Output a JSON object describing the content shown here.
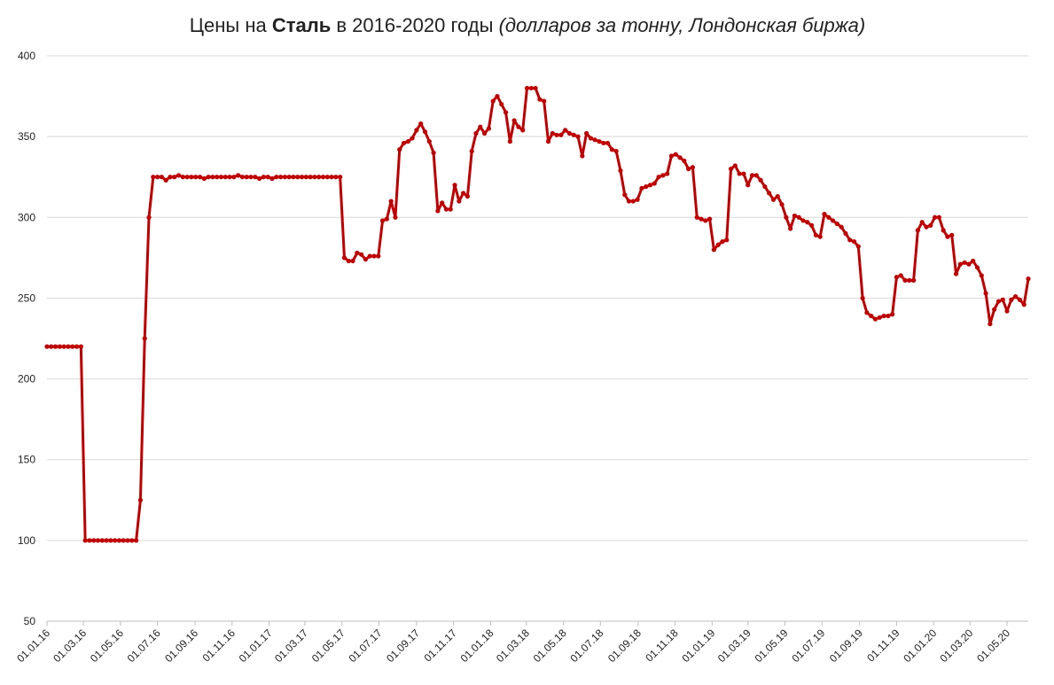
{
  "chart_data": {
    "type": "line",
    "title": [
      "Цены на ",
      "Сталь",
      " в 2016-2020 годы ",
      "(долларов за тонну, Лондонская биржа)"
    ],
    "color": "#c00000",
    "grid": true,
    "x": [
      "01.01.16",
      "08.01.16",
      "15.01.16",
      "22.01.16",
      "29.01.16",
      "05.02.16",
      "12.02.16",
      "19.02.16",
      "26.02.16",
      "04.03.16",
      "11.03.16",
      "18.03.16",
      "25.03.16",
      "01.04.16",
      "08.04.16",
      "15.04.16",
      "22.04.16",
      "29.04.16",
      "06.05.16",
      "13.05.16",
      "20.05.16",
      "27.05.16",
      "03.06.16",
      "10.06.16",
      "17.06.16",
      "24.06.16",
      "01.07.16",
      "08.07.16",
      "15.07.16",
      "22.07.16",
      "29.07.16",
      "05.08.16",
      "12.08.16",
      "19.08.16",
      "26.08.16",
      "02.09.16",
      "09.09.16",
      "16.09.16",
      "23.09.16",
      "30.09.16",
      "07.10.16",
      "14.10.16",
      "21.10.16",
      "28.10.16",
      "04.11.16",
      "11.11.16",
      "18.11.16",
      "25.11.16",
      "02.12.16",
      "09.12.16",
      "16.12.16",
      "23.12.16",
      "30.12.16",
      "06.01.17",
      "13.01.17",
      "20.01.17",
      "27.01.17",
      "03.02.17",
      "10.02.17",
      "17.02.17",
      "24.02.17",
      "03.03.17",
      "10.03.17",
      "17.03.17",
      "24.03.17",
      "31.03.17",
      "07.04.17",
      "14.04.17",
      "21.04.17",
      "28.04.17",
      "05.05.17",
      "12.05.17",
      "19.05.17",
      "26.05.17",
      "02.06.17",
      "09.06.17",
      "16.06.17",
      "23.06.17",
      "30.06.17",
      "07.07.17",
      "14.07.17",
      "21.07.17",
      "28.07.17",
      "04.08.17",
      "11.08.17",
      "18.08.17",
      "25.08.17",
      "01.09.17",
      "08.09.17",
      "15.09.17",
      "22.09.17",
      "29.09.17",
      "06.10.17",
      "13.10.17",
      "20.10.17",
      "27.10.17",
      "03.11.17",
      "10.11.17",
      "17.11.17",
      "24.11.17",
      "01.12.17",
      "08.12.17",
      "15.12.17",
      "22.12.17",
      "29.12.17",
      "05.01.18",
      "12.01.18",
      "19.01.18",
      "26.01.18",
      "02.02.18",
      "09.02.18",
      "16.02.18",
      "23.02.18",
      "02.03.18",
      "09.03.18",
      "16.03.18",
      "23.03.18",
      "30.03.18",
      "06.04.18",
      "13.04.18",
      "20.04.18",
      "27.04.18",
      "04.05.18",
      "11.05.18",
      "18.05.18",
      "25.05.18",
      "01.06.18",
      "08.06.18",
      "15.06.18",
      "22.06.18",
      "29.06.18",
      "06.07.18",
      "13.07.18",
      "20.07.18",
      "27.07.18",
      "03.08.18",
      "10.08.18",
      "17.08.18",
      "24.08.18",
      "31.08.18",
      "07.09.18",
      "14.09.18",
      "21.09.18",
      "28.09.18",
      "05.10.18",
      "12.10.18",
      "19.10.18",
      "26.10.18",
      "02.11.18",
      "09.11.18",
      "16.11.18",
      "23.11.18",
      "30.11.18",
      "07.12.18",
      "14.12.18",
      "21.12.18",
      "28.12.18",
      "04.01.19",
      "11.01.19",
      "18.01.19",
      "25.01.19",
      "01.02.19",
      "08.02.19",
      "15.02.19",
      "22.02.19",
      "01.03.19",
      "08.03.19",
      "15.03.19",
      "22.03.19",
      "29.03.19",
      "05.04.19",
      "12.04.19",
      "19.04.19",
      "26.04.19",
      "03.05.19",
      "10.05.19",
      "17.05.19",
      "24.05.19",
      "31.05.19",
      "07.06.19",
      "14.06.19",
      "21.06.19",
      "28.06.19",
      "05.07.19",
      "12.07.19",
      "19.07.19",
      "26.07.19",
      "02.08.19",
      "09.08.19",
      "16.08.19",
      "23.08.19",
      "30.08.19",
      "06.09.19",
      "13.09.19",
      "20.09.19",
      "27.09.19",
      "04.10.19",
      "11.10.19",
      "18.10.19",
      "25.10.19",
      "01.11.19",
      "08.11.19",
      "15.11.19",
      "22.11.19",
      "29.11.19",
      "06.12.19",
      "13.12.19",
      "20.12.19",
      "27.12.19",
      "03.01.20",
      "10.01.20",
      "17.01.20",
      "24.01.20",
      "31.01.20",
      "07.02.20",
      "14.02.20",
      "21.02.20",
      "28.02.20",
      "06.03.20",
      "13.03.20",
      "20.03.20",
      "27.03.20",
      "03.04.20",
      "10.04.20",
      "17.04.20",
      "24.04.20",
      "01.05.20",
      "08.05.20",
      "15.05.20",
      "22.05.20",
      "29.05.20",
      "05.06.20"
    ],
    "values": [
      220,
      220,
      220,
      220,
      220,
      220,
      220,
      220,
      220,
      100,
      100,
      100,
      100,
      100,
      100,
      100,
      100,
      100,
      100,
      100,
      100,
      100,
      125,
      225,
      300,
      325,
      325,
      325,
      323,
      325,
      325,
      326,
      325,
      325,
      325,
      325,
      325,
      324,
      325,
      325,
      325,
      325,
      325,
      325,
      325,
      326,
      325,
      325,
      325,
      325,
      324,
      325,
      325,
      324,
      325,
      325,
      325,
      325,
      325,
      325,
      325,
      325,
      325,
      325,
      325,
      325,
      325,
      325,
      325,
      325,
      275,
      273,
      273,
      278,
      277,
      274,
      276,
      276,
      276,
      298,
      299,
      310,
      300,
      342,
      346,
      347,
      349,
      354,
      358,
      353,
      347,
      340,
      304,
      309,
      305,
      305,
      320,
      310,
      315,
      313,
      341,
      352,
      356,
      352,
      355,
      372,
      375,
      370,
      365,
      347,
      360,
      356,
      354,
      380,
      380,
      380,
      373,
      372,
      347,
      352,
      351,
      351,
      354,
      352,
      351,
      350,
      338,
      352,
      349,
      348,
      347,
      346,
      346,
      342,
      341,
      329,
      314,
      310,
      310,
      311,
      318,
      319,
      320,
      321,
      325,
      326,
      327,
      338,
      339,
      337,
      335,
      330,
      331,
      300,
      299,
      298,
      299,
      280,
      283,
      285,
      286,
      330,
      332,
      327,
      327,
      320,
      326,
      326,
      323,
      319,
      315,
      311,
      313,
      308,
      300,
      293,
      301,
      300,
      298,
      297,
      295,
      289,
      288,
      302,
      300,
      298,
      296,
      294,
      290,
      286,
      285,
      282,
      250,
      241,
      239,
      237,
      238,
      239,
      239,
      240,
      263,
      264,
      261,
      261,
      261,
      292,
      297,
      294,
      295,
      300,
      300,
      292,
      288,
      289,
      265,
      271,
      272,
      271,
      273,
      269,
      264,
      253,
      234,
      243,
      248,
      249,
      242,
      249,
      251,
      249,
      246,
      262
    ],
    "xlim": [
      "01.01.16",
      "05.06.20"
    ],
    "xticks": [
      "01.01.16",
      "01.03.16",
      "01.05.16",
      "01.07.16",
      "01.09.16",
      "01.11.16",
      "01.01.17",
      "01.03.17",
      "01.05.17",
      "01.07.17",
      "01.09.17",
      "01.11.17",
      "01.01.18",
      "01.03.18",
      "01.05.18",
      "01.07.18",
      "01.09.18",
      "01.11.18",
      "01.01.19",
      "01.03.19",
      "01.05.19",
      "01.07.19",
      "01.09.19",
      "01.11.19",
      "01.01.20",
      "01.03.20",
      "01.05.20"
    ],
    "ylim": [
      50,
      400
    ],
    "yticks": [
      50,
      100,
      150,
      200,
      250,
      300,
      350,
      400
    ]
  }
}
